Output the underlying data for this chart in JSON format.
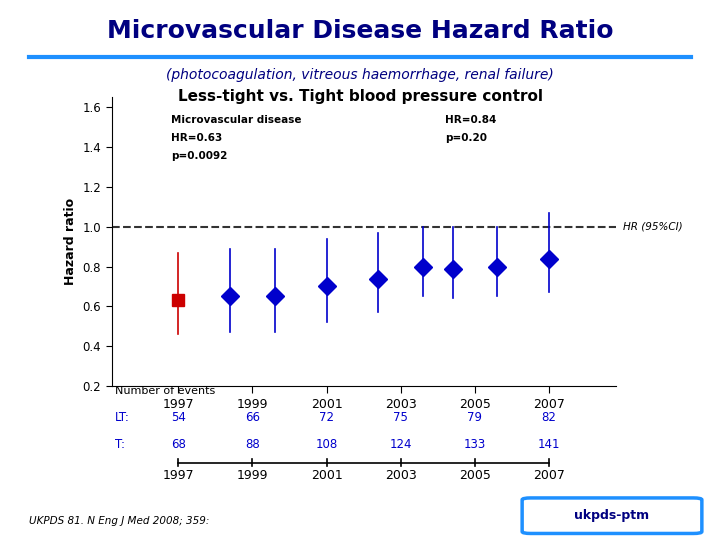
{
  "title": "Microvascular Disease Hazard Ratio",
  "subtitle": "(photocoagulation, vitreous haemorrhage, renal failure)",
  "subtitle2": "Less-tight vs. Tight blood pressure control",
  "title_color": "#000080",
  "subtitle_color": "#000080",
  "ylabel": "Hazard ratio",
  "years": [
    1997,
    1999,
    2001,
    2003,
    2005,
    2007
  ],
  "x_positions": [
    1997.0,
    1998.4,
    1999.6,
    2001.0,
    2002.4,
    2003.6,
    2004.4,
    2005.6,
    2007.0
  ],
  "hr_values": [
    0.63,
    0.65,
    0.65,
    0.7,
    0.74,
    0.8,
    0.79,
    0.8,
    0.84
  ],
  "ci_lower": [
    0.46,
    0.47,
    0.47,
    0.52,
    0.57,
    0.65,
    0.64,
    0.65,
    0.67
  ],
  "ci_upper": [
    0.87,
    0.89,
    0.89,
    0.94,
    0.97,
    1.0,
    1.0,
    1.0,
    1.07
  ],
  "point_colors": [
    "#cc0000",
    "#0000cc",
    "#0000cc",
    "#0000cc",
    "#0000cc",
    "#0000cc",
    "#0000cc",
    "#0000cc",
    "#0000cc"
  ],
  "markers": [
    "s",
    "D",
    "D",
    "D",
    "D",
    "D",
    "D",
    "D",
    "D"
  ],
  "hr_label": "HR (95%CI)",
  "lt_values": [
    "54",
    "66",
    "72",
    "75",
    "79",
    "82"
  ],
  "t_values": [
    "68",
    "88",
    "108",
    "124",
    "133",
    "141"
  ],
  "ylim": [
    0.2,
    1.65
  ],
  "yticks": [
    0.2,
    0.4,
    0.6,
    0.8,
    1.0,
    1.2,
    1.4,
    1.6
  ],
  "xlim": [
    1995.2,
    2008.8
  ],
  "footer": "UKPDS 81. N Eng J Med 2008; 359:",
  "plot_color": "#0000cc",
  "red_color": "#cc0000",
  "dashed_color": "#333333",
  "blue_line_color": "#1e90ff",
  "ann_left_line1": "Microvascular disease",
  "ann_left_line2": "HR=0.63",
  "ann_left_line3": "p=0.0092",
  "ann_right_line1": "HR=0.84",
  "ann_right_line2": "p=0.20"
}
